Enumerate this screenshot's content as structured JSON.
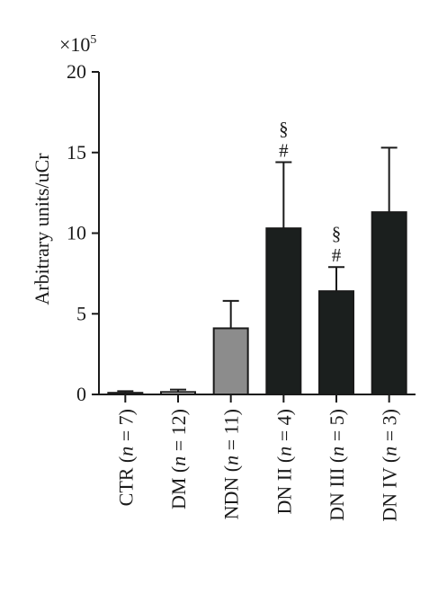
{
  "chart_data": {
    "type": "bar",
    "multiplier_label": "×10",
    "multiplier_exponent": "5",
    "ylabel": "Arbitrary units/uCr",
    "xlabel": "",
    "title": "",
    "ylim": [
      0,
      20
    ],
    "yticks": [
      0,
      5,
      10,
      15,
      20
    ],
    "categories": [
      {
        "prefix": "CTR (",
        "n": "n",
        "suffix": " = 7)"
      },
      {
        "prefix": "DM (",
        "n": "n",
        "suffix": " = 12)"
      },
      {
        "prefix": "NDN (",
        "n": "n",
        "suffix": " = 11)"
      },
      {
        "prefix": "DN II (",
        "n": "n",
        "suffix": " = 4)"
      },
      {
        "prefix": "DN III (",
        "n": "n",
        "suffix": " = 5)"
      },
      {
        "prefix": "DN IV (",
        "n": "n",
        "suffix": " = 3)"
      }
    ],
    "values": [
      0.1,
      0.15,
      4.1,
      10.3,
      6.4,
      11.3
    ],
    "errors": [
      0.1,
      0.15,
      1.7,
      4.1,
      1.5,
      4.0
    ],
    "colors": [
      "#ffffff",
      "#ffffff",
      "#8c8c8c",
      "#1b1f1e",
      "#1b1f1e",
      "#1b1f1e"
    ],
    "significance": [
      {
        "index": 3,
        "marks": [
          "§",
          "#"
        ]
      },
      {
        "index": 4,
        "marks": [
          "§",
          "#"
        ]
      }
    ],
    "grid": false,
    "legend": "none"
  }
}
